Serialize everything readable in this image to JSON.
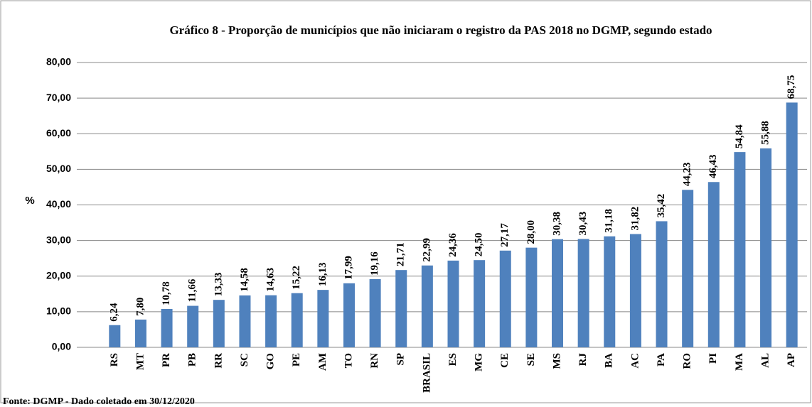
{
  "chart_data": {
    "type": "bar",
    "title": "Gráfico 8 -  Proporção de municípios que não iniciaram o  registro da PAS 2018 no  DGMP, segundo estado",
    "y_label": "%",
    "source": "Fonte: DGMP - Dado coletado em 30/12/2020",
    "categories": [
      "RS",
      "MT",
      "PR",
      "PB",
      "RR",
      "SC",
      "GO",
      "PE",
      "AM",
      "TO",
      "RN",
      "SP",
      "BRASIL",
      "ES",
      "MG",
      "CE",
      "SE",
      "MS",
      "RJ",
      "BA",
      "AC",
      "PA",
      "RO",
      "PI",
      "MA",
      "AL",
      "AP"
    ],
    "values": [
      6.24,
      7.8,
      10.78,
      11.66,
      13.33,
      14.58,
      14.63,
      15.22,
      16.13,
      17.99,
      19.16,
      21.71,
      22.99,
      24.36,
      24.5,
      27.17,
      28.0,
      30.38,
      30.43,
      31.18,
      31.82,
      35.42,
      44.23,
      46.43,
      54.84,
      55.88,
      68.75
    ],
    "value_labels": [
      "6,24",
      "7,80",
      "10,78",
      "11,66",
      "13,33",
      "14,58",
      "14,63",
      "15,22",
      "16,13",
      "17,99",
      "19,16",
      "21,71",
      "22,99",
      "24,36",
      "24,50",
      "27,17",
      "28,00",
      "30,38",
      "30,43",
      "31,18",
      "31,82",
      "35,42",
      "44,23",
      "46,43",
      "54,84",
      "55,88",
      "68,75"
    ],
    "color": "#4f81bd",
    "ylim": [
      0,
      80
    ],
    "yticks": [
      {
        "value": 0,
        "label": "0,00"
      },
      {
        "value": 10,
        "label": "10,00"
      },
      {
        "value": 20,
        "label": "20,00"
      },
      {
        "value": 30,
        "label": "30,00"
      },
      {
        "value": 40,
        "label": "40,00"
      },
      {
        "value": 50,
        "label": "50,00"
      },
      {
        "value": 60,
        "label": "60,00"
      },
      {
        "value": 70,
        "label": "70,00"
      },
      {
        "value": 80,
        "label": "80,00"
      }
    ],
    "grid": true
  }
}
